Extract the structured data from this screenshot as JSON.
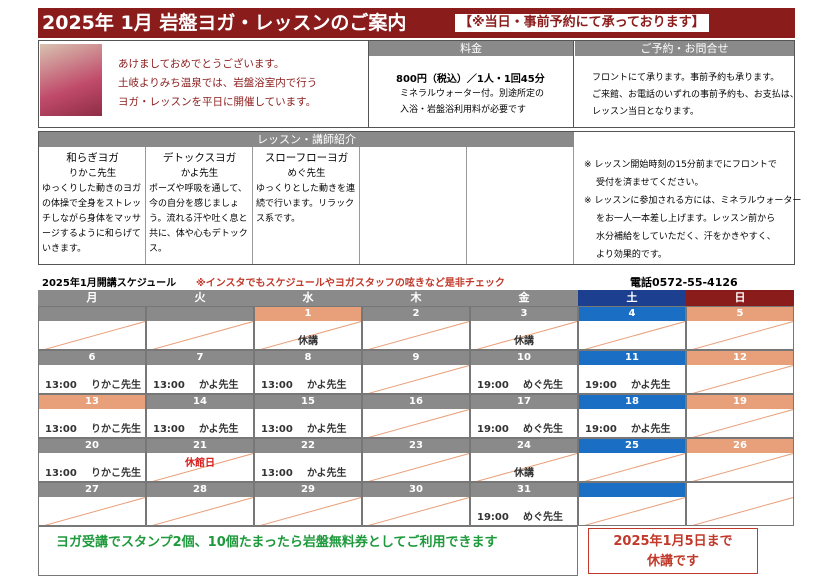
{
  "header": {
    "title": "2025年 1月 岩盤ヨガ・レッスンのご案内",
    "note": "【※当日・事前予約にて承っております】"
  },
  "intro": {
    "lines": [
      "あけましておめでとうございます。",
      "土岐よりみち温泉では、岩盤浴室内で行う",
      "ヨガ・レッスンを平日に開催しています。"
    ]
  },
  "price": {
    "heading": "料金",
    "main": "800円（税込）／1人・1回45分",
    "lines": [
      "ミネラルウォーター付。別途所定の",
      "入浴・岩盤浴利用料が必要です"
    ]
  },
  "contact": {
    "heading": "ご予約・お問合せ",
    "lines": [
      "フロントにて承ります。事前予約も承ります。",
      "ご来館、お電話のいずれの事前予約も、お支払は、",
      "レッスン当日となります。"
    ]
  },
  "lessons": {
    "heading": "レッスン・講師紹介",
    "items": [
      {
        "name": "和らぎヨガ",
        "teacher": "りかこ先生",
        "description": "ゆっくりした動きのヨガの体操で全身をストレッチしながら身体をマッサージするように和らげていきます。"
      },
      {
        "name": "デトックスヨガ",
        "teacher": "かよ先生",
        "description": "ポーズや呼吸を通して、今の自分を感じましょう。流れる汗や吐く息と共に、体や心もデトックス。"
      },
      {
        "name": "スローフローヨガ",
        "teacher": "めぐ先生",
        "description": "ゆっくりとした動きを連続で行います。リラックス系です。"
      }
    ],
    "notes": [
      "※ レッスン開始時刻の15分前までにフロントで",
      "受付を済ませてください。",
      "※ レッスンに参加される方には、ミネラルウォーター",
      "をお一人一本差し上げます。レッスン前から",
      "水分補給をしていただく、汗をかきやすく、",
      "より効果的です。"
    ]
  },
  "schedule": {
    "title": "2025年1月開講スケジュール",
    "instagram": "※インスタでもスケジュールやヨガスタッフの呟きなど是非チェック",
    "phone": "電話0572-55-4126",
    "days": [
      {
        "label": "月",
        "kind": "weekday"
      },
      {
        "label": "火",
        "kind": "weekday"
      },
      {
        "label": "水",
        "kind": "weekday"
      },
      {
        "label": "木",
        "kind": "weekday"
      },
      {
        "label": "金",
        "kind": "weekday"
      },
      {
        "label": "土",
        "kind": "sat"
      },
      {
        "label": "日",
        "kind": "sun"
      }
    ],
    "weeks": [
      [
        {
          "date": null,
          "kind": "weekday"
        },
        {
          "date": null,
          "kind": "weekday"
        },
        {
          "date": 1,
          "kind": "holiday",
          "note": "休講"
        },
        {
          "date": 2,
          "kind": "weekday"
        },
        {
          "date": 3,
          "kind": "weekday",
          "note": "休講"
        },
        {
          "date": 4,
          "kind": "sat"
        },
        {
          "date": 5,
          "kind": "sun"
        }
      ],
      [
        {
          "date": 6,
          "kind": "weekday",
          "time": "13:00",
          "teacher": "りかこ先生"
        },
        {
          "date": 7,
          "kind": "weekday",
          "time": "13:00",
          "teacher": "かよ先生"
        },
        {
          "date": 8,
          "kind": "weekday",
          "time": "13:00",
          "teacher": "かよ先生"
        },
        {
          "date": 9,
          "kind": "weekday"
        },
        {
          "date": 10,
          "kind": "weekday",
          "time": "19:00",
          "teacher": "めぐ先生"
        },
        {
          "date": 11,
          "kind": "sat",
          "time": "19:00",
          "teacher": "かよ先生"
        },
        {
          "date": 12,
          "kind": "sun"
        }
      ],
      [
        {
          "date": 13,
          "kind": "holiday",
          "time": "13:00",
          "teacher": "りかこ先生"
        },
        {
          "date": 14,
          "kind": "weekday",
          "time": "13:00",
          "teacher": "かよ先生"
        },
        {
          "date": 15,
          "kind": "weekday",
          "time": "13:00",
          "teacher": "かよ先生"
        },
        {
          "date": 16,
          "kind": "weekday"
        },
        {
          "date": 17,
          "kind": "weekday",
          "time": "19:00",
          "teacher": "めぐ先生"
        },
        {
          "date": 18,
          "kind": "sat",
          "time": "19:00",
          "teacher": "かよ先生"
        },
        {
          "date": 19,
          "kind": "sun"
        }
      ],
      [
        {
          "date": 20,
          "kind": "weekday",
          "time": "13:00",
          "teacher": "りかこ先生"
        },
        {
          "date": 21,
          "kind": "weekday",
          "closed": "休館日"
        },
        {
          "date": 22,
          "kind": "weekday",
          "time": "13:00",
          "teacher": "かよ先生"
        },
        {
          "date": 23,
          "kind": "weekday"
        },
        {
          "date": 24,
          "kind": "weekday",
          "note": "休講"
        },
        {
          "date": 25,
          "kind": "sat"
        },
        {
          "date": 26,
          "kind": "sun"
        }
      ],
      [
        {
          "date": 27,
          "kind": "weekday"
        },
        {
          "date": 28,
          "kind": "weekday"
        },
        {
          "date": 29,
          "kind": "weekday"
        },
        {
          "date": 30,
          "kind": "weekday"
        },
        {
          "date": 31,
          "kind": "weekday",
          "time": "19:00",
          "teacher": "めぐ先生"
        },
        {
          "date": null,
          "kind": "sat"
        },
        {
          "date": null,
          "kind": "none"
        }
      ]
    ]
  },
  "footer": {
    "stamp": "ヨガ受講でスタンプ2個、10個たまったら岩盤無料券としてご利用できます",
    "closure": [
      "2025年1月5日まで",
      "休講です"
    ]
  }
}
